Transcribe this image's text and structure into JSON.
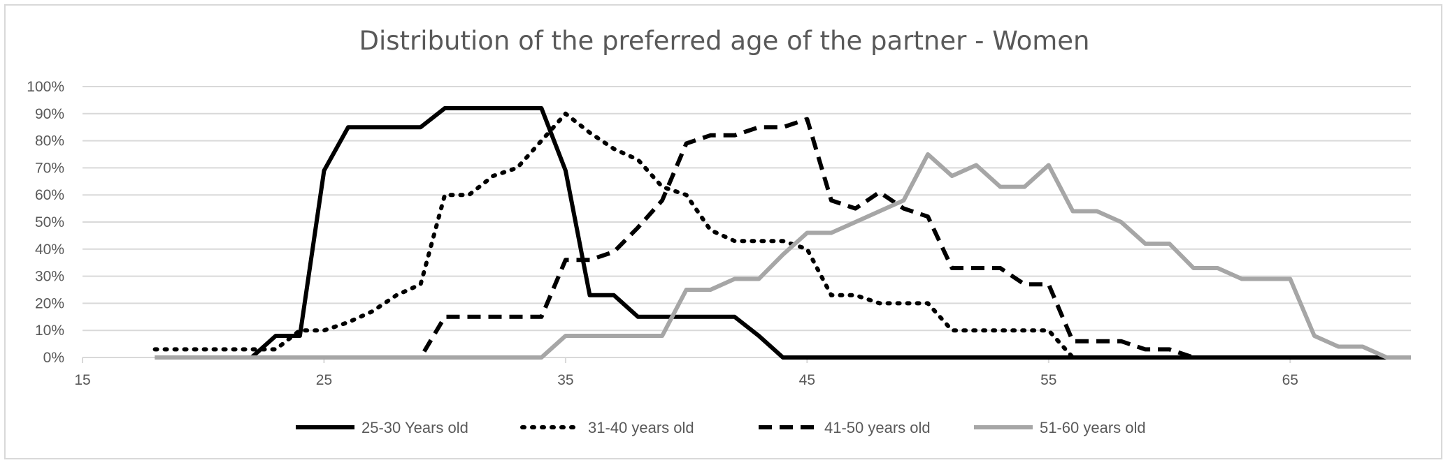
{
  "chart_data": {
    "type": "line",
    "title": "Distribution of the preferred age of the partner - Women",
    "xlabel": "",
    "ylabel": "",
    "xlim": [
      15,
      70
    ],
    "ylim": [
      0,
      100
    ],
    "x_ticks": [
      15,
      25,
      35,
      45,
      55,
      65
    ],
    "x_tick_labels": [
      "15",
      "25",
      "35",
      "45",
      "55",
      "65"
    ],
    "y_ticks": [
      0,
      10,
      20,
      30,
      40,
      50,
      60,
      70,
      80,
      90,
      100
    ],
    "y_tick_labels": [
      "0%",
      "10%",
      "20%",
      "30%",
      "40%",
      "50%",
      "60%",
      "70%",
      "80%",
      "90%",
      "100%"
    ],
    "grid": "horizontal",
    "legend_position": "bottom",
    "series": [
      {
        "name": "25-30 Years old",
        "style": "solid",
        "color": "#000000",
        "x": [
          18,
          19,
          20,
          21,
          22,
          23,
          24,
          25,
          26,
          27,
          28,
          29,
          30,
          31,
          32,
          33,
          34,
          35,
          36,
          37,
          38,
          39,
          40,
          41,
          42,
          43,
          44,
          45,
          50,
          55,
          60,
          65,
          70
        ],
        "y": [
          0,
          0,
          0,
          0,
          0,
          8,
          8,
          69,
          85,
          85,
          85,
          85,
          92,
          92,
          92,
          92,
          92,
          69,
          23,
          23,
          15,
          15,
          15,
          15,
          15,
          8,
          0,
          0,
          0,
          0,
          0,
          0,
          0
        ]
      },
      {
        "name": "31-40 years old",
        "style": "dotted",
        "color": "#000000",
        "x": [
          18,
          19,
          20,
          21,
          22,
          23,
          24,
          25,
          26,
          27,
          28,
          29,
          30,
          31,
          32,
          33,
          34,
          35,
          36,
          37,
          38,
          39,
          40,
          41,
          42,
          43,
          44,
          45,
          46,
          47,
          48,
          49,
          50,
          51,
          52,
          53,
          54,
          55,
          56,
          60,
          65,
          70
        ],
        "y": [
          3,
          3,
          3,
          3,
          3,
          3,
          10,
          10,
          13,
          17,
          23,
          27,
          60,
          60,
          67,
          70,
          80,
          90,
          83,
          77,
          73,
          63,
          60,
          47,
          43,
          43,
          43,
          40,
          23,
          23,
          20,
          20,
          20,
          10,
          10,
          10,
          10,
          10,
          0,
          0,
          0,
          0
        ]
      },
      {
        "name": "41-50 years old",
        "style": "dashed",
        "color": "#000000",
        "x": [
          18,
          25,
          29,
          30,
          31,
          32,
          33,
          34,
          35,
          36,
          37,
          38,
          39,
          40,
          41,
          42,
          43,
          44,
          45,
          46,
          47,
          48,
          49,
          50,
          51,
          52,
          53,
          54,
          55,
          56,
          57,
          58,
          59,
          60,
          61,
          65,
          70
        ],
        "y": [
          0,
          0,
          0,
          15,
          15,
          15,
          15,
          15,
          36,
          36,
          39,
          48,
          58,
          79,
          82,
          82,
          85,
          85,
          88,
          58,
          55,
          61,
          55,
          52,
          33,
          33,
          33,
          27,
          27,
          6,
          6,
          6,
          3,
          3,
          0,
          0,
          0
        ]
      },
      {
        "name": "51-60 years old",
        "style": "solid",
        "color": "#a6a6a6",
        "x": [
          18,
          25,
          30,
          34,
          35,
          36,
          37,
          38,
          39,
          40,
          41,
          42,
          43,
          44,
          45,
          46,
          47,
          48,
          49,
          50,
          51,
          52,
          53,
          54,
          55,
          56,
          57,
          58,
          59,
          60,
          61,
          62,
          63,
          64,
          65,
          66,
          67,
          68,
          69,
          70
        ],
        "y": [
          0,
          0,
          0,
          0,
          8,
          8,
          8,
          8,
          8,
          25,
          25,
          29,
          29,
          38,
          46,
          46,
          50,
          54,
          58,
          75,
          67,
          71,
          63,
          63,
          71,
          54,
          54,
          50,
          42,
          42,
          33,
          33,
          29,
          29,
          29,
          8,
          4,
          4,
          0,
          0
        ]
      }
    ]
  }
}
